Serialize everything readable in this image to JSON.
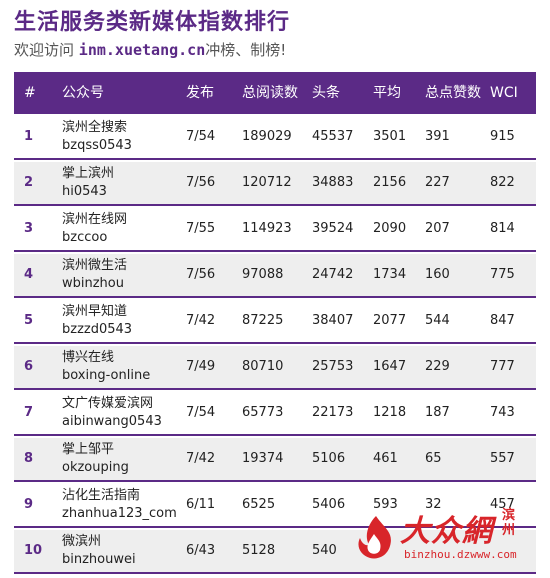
{
  "header": {
    "title": "生活服务类新媒体指数排行",
    "subtitle_prefix": "欢迎访问",
    "subtitle_site": "inm.xuetang.cn",
    "subtitle_suffix": "冲榜、制榜!"
  },
  "columns": {
    "rank": "#",
    "account": "公众号",
    "published": "发布",
    "total_reads": "总阅读数",
    "headline": "头条",
    "average": "平均",
    "likes": "总点赞数",
    "wci": "WCI"
  },
  "rows": [
    {
      "rank": "1",
      "name": "滨州全搜索",
      "id": "bzqss0543",
      "published": "7/54",
      "total_reads": "189029",
      "headline": "45537",
      "average": "3501",
      "likes": "391",
      "wci": "915"
    },
    {
      "rank": "2",
      "name": "掌上滨州",
      "id": "hi0543",
      "published": "7/56",
      "total_reads": "120712",
      "headline": "34883",
      "average": "2156",
      "likes": "227",
      "wci": "822"
    },
    {
      "rank": "3",
      "name": "滨州在线网",
      "id": "bzccoo",
      "published": "7/55",
      "total_reads": "114923",
      "headline": "39524",
      "average": "2090",
      "likes": "207",
      "wci": "814"
    },
    {
      "rank": "4",
      "name": "滨州微生活",
      "id": "wbinzhou",
      "published": "7/56",
      "total_reads": "97088",
      "headline": "24742",
      "average": "1734",
      "likes": "160",
      "wci": "775"
    },
    {
      "rank": "5",
      "name": "滨州早知道",
      "id": "bzzzd0543",
      "published": "7/42",
      "total_reads": "87225",
      "headline": "38407",
      "average": "2077",
      "likes": "544",
      "wci": "847"
    },
    {
      "rank": "6",
      "name": "博兴在线",
      "id": "boxing-online",
      "published": "7/49",
      "total_reads": "80710",
      "headline": "25753",
      "average": "1647",
      "likes": "229",
      "wci": "777"
    },
    {
      "rank": "7",
      "name": "文广传媒爱滨网",
      "id": "aibinwang0543",
      "published": "7/54",
      "total_reads": "65773",
      "headline": "22173",
      "average": "1218",
      "likes": "187",
      "wci": "743"
    },
    {
      "rank": "8",
      "name": "掌上邹平",
      "id": "okzouping",
      "published": "7/42",
      "total_reads": "19374",
      "headline": "5106",
      "average": "461",
      "likes": "65",
      "wci": "557"
    },
    {
      "rank": "9",
      "name": "沾化生活指南",
      "id": "zhanhua123_com",
      "published": "6/11",
      "total_reads": "6525",
      "headline": "5406",
      "average": "593",
      "likes": "32",
      "wci": "457"
    },
    {
      "rank": "10",
      "name": "微滨州",
      "id": "binzhouwei",
      "published": "6/43",
      "total_reads": "5128",
      "headline": "540",
      "average": "",
      "likes": "",
      "wci": ""
    }
  ],
  "watermark": {
    "brand": "大众網",
    "city": "滨州",
    "url": "binzhou.dzwww.com"
  },
  "colors": {
    "accent": "#5b2a86",
    "row_alt": "#eeeeee",
    "logo_red": "#d8252a"
  }
}
